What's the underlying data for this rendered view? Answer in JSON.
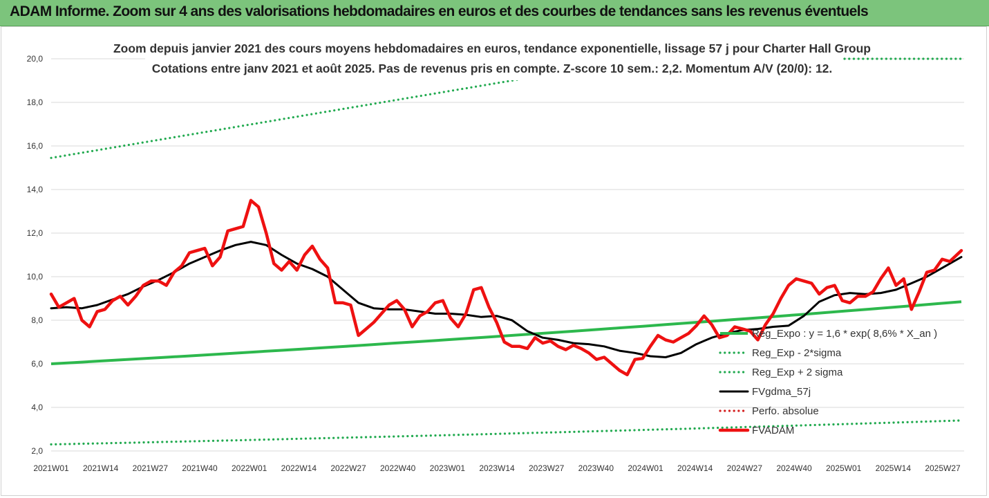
{
  "banner": {
    "title": "ADAM Informe. Zoom sur 4 ans des valorisations hebdomadaires en euros et des courbes de tendances sans les revenus éventuels"
  },
  "chart_data": {
    "type": "line",
    "title_lines": [
      "Zoom depuis janvier 2021 des cours moyens hebdomadaires en euros, tendance exponentielle, lissage 57 j pour Charter Hall Group",
      "Cotations entre janv 2021 et août 2025.  Pas de revenus pris en compte. Z-score 10 sem.: 2,2. Momentum A/V (20/0): 12."
    ],
    "x_ticks": [
      "2021W01",
      "2021W14",
      "2021W27",
      "2021W40",
      "2022W01",
      "2022W14",
      "2022W27",
      "2022W40",
      "2023W01",
      "2023W14",
      "2023W27",
      "2023W40",
      "2024W01",
      "2024W14",
      "2024W27",
      "2024W40",
      "2025W01",
      "2025W14",
      "2025W27"
    ],
    "y_ticks": [
      "2,0",
      "4,0",
      "6,0",
      "8,0",
      "10,0",
      "12,0",
      "14,0",
      "16,0",
      "18,0",
      "20,0"
    ],
    "ylim": [
      2,
      20
    ],
    "x_range_weeks": [
      0,
      237
    ],
    "grid": "horizontal",
    "legend_position": "bottom-right",
    "series": [
      {
        "name": "Reg_Expo : y = 1,6 * exp( 8,6% *  X_an )",
        "style": "solid-thick",
        "color": "#2db84d",
        "x": [
          0,
          237
        ],
        "values": [
          6.0,
          8.85
        ]
      },
      {
        "name": "Reg_Exp - 2*sigma",
        "style": "dotted",
        "color": "#22aa50",
        "x": [
          0,
          237
        ],
        "values": [
          2.3,
          3.4
        ]
      },
      {
        "name": "Reg_Exp + 2 sigma",
        "style": "dotted",
        "color": "#22aa50",
        "x": [
          0,
          237
        ],
        "values": [
          15.45,
          23.0
        ],
        "clip_max": 20
      },
      {
        "name": "FVgdma_57j",
        "style": "solid",
        "color": "#000000",
        "x": [
          0,
          4,
          8,
          12,
          16,
          20,
          24,
          28,
          32,
          36,
          40,
          44,
          48,
          52,
          56,
          60,
          64,
          68,
          72,
          76,
          80,
          84,
          88,
          92,
          96,
          100,
          104,
          108,
          112,
          116,
          120,
          124,
          128,
          132,
          136,
          140,
          144,
          148,
          152,
          156,
          160,
          164,
          168,
          172,
          176,
          180,
          184,
          188,
          192,
          196,
          200,
          204,
          208,
          212,
          216,
          220,
          224,
          228,
          232,
          237
        ],
        "values": [
          8.55,
          8.6,
          8.55,
          8.7,
          8.95,
          9.2,
          9.55,
          9.85,
          10.2,
          10.6,
          10.9,
          11.2,
          11.45,
          11.6,
          11.45,
          11.0,
          10.6,
          10.35,
          10.0,
          9.4,
          8.8,
          8.55,
          8.5,
          8.5,
          8.4,
          8.3,
          8.3,
          8.25,
          8.15,
          8.2,
          8.0,
          7.5,
          7.2,
          7.1,
          6.95,
          6.9,
          6.8,
          6.6,
          6.5,
          6.35,
          6.3,
          6.5,
          6.9,
          7.2,
          7.4,
          7.55,
          7.6,
          7.7,
          7.75,
          8.2,
          8.85,
          9.15,
          9.25,
          9.2,
          9.25,
          9.4,
          9.7,
          10.0,
          10.4,
          10.9
        ]
      },
      {
        "name": "Perfo. absolue",
        "style": "dotted",
        "color": "#d42020",
        "x": [],
        "values": []
      },
      {
        "name": "FVADAM",
        "style": "solid-thick",
        "color": "#ee1111",
        "x": [
          0,
          2,
          4,
          6,
          8,
          10,
          12,
          14,
          16,
          18,
          20,
          22,
          24,
          26,
          28,
          30,
          32,
          34,
          36,
          38,
          40,
          42,
          44,
          46,
          48,
          50,
          52,
          54,
          56,
          58,
          60,
          62,
          64,
          66,
          68,
          70,
          72,
          74,
          76,
          78,
          80,
          82,
          84,
          86,
          88,
          90,
          92,
          94,
          96,
          98,
          100,
          102,
          104,
          106,
          108,
          110,
          112,
          114,
          116,
          118,
          120,
          122,
          124,
          126,
          128,
          130,
          132,
          134,
          136,
          138,
          140,
          142,
          144,
          146,
          148,
          150,
          152,
          154,
          156,
          158,
          160,
          162,
          164,
          166,
          168,
          170,
          172,
          174,
          176,
          178,
          180,
          182,
          184,
          186,
          188,
          190,
          192,
          194,
          196,
          198,
          200,
          202,
          204,
          206,
          208,
          210,
          212,
          214,
          216,
          218,
          220,
          222,
          224,
          226,
          228,
          230,
          232,
          234,
          237
        ],
        "values": [
          9.2,
          8.6,
          8.8,
          9.0,
          8.0,
          7.7,
          8.4,
          8.5,
          8.9,
          9.1,
          8.7,
          9.1,
          9.6,
          9.8,
          9.8,
          9.6,
          10.2,
          10.5,
          11.1,
          11.2,
          11.3,
          10.5,
          10.9,
          12.1,
          12.2,
          12.3,
          13.5,
          13.2,
          12.0,
          10.6,
          10.3,
          10.7,
          10.3,
          11.0,
          11.4,
          10.8,
          10.4,
          8.8,
          8.8,
          8.7,
          7.3,
          7.6,
          7.9,
          8.3,
          8.7,
          8.9,
          8.5,
          7.7,
          8.2,
          8.4,
          8.8,
          8.9,
          8.1,
          7.7,
          8.3,
          9.4,
          9.5,
          8.6,
          7.9,
          7.0,
          6.8,
          6.8,
          6.7,
          7.2,
          6.95,
          7.05,
          6.8,
          6.65,
          6.85,
          6.7,
          6.5,
          6.2,
          6.3,
          6.0,
          5.7,
          5.5,
          6.2,
          6.25,
          6.8,
          7.3,
          7.1,
          7.0,
          7.2,
          7.4,
          7.75,
          8.2,
          7.8,
          7.2,
          7.3,
          7.7,
          7.6,
          7.5,
          7.1,
          7.8,
          8.3,
          9.0,
          9.6,
          9.9,
          9.8,
          9.7,
          9.2,
          9.5,
          9.6,
          8.9,
          8.8,
          9.1,
          9.1,
          9.3,
          9.9,
          10.4,
          9.6,
          9.9,
          8.5,
          9.3,
          10.2,
          10.3,
          10.8,
          10.7,
          11.2
        ]
      }
    ]
  }
}
